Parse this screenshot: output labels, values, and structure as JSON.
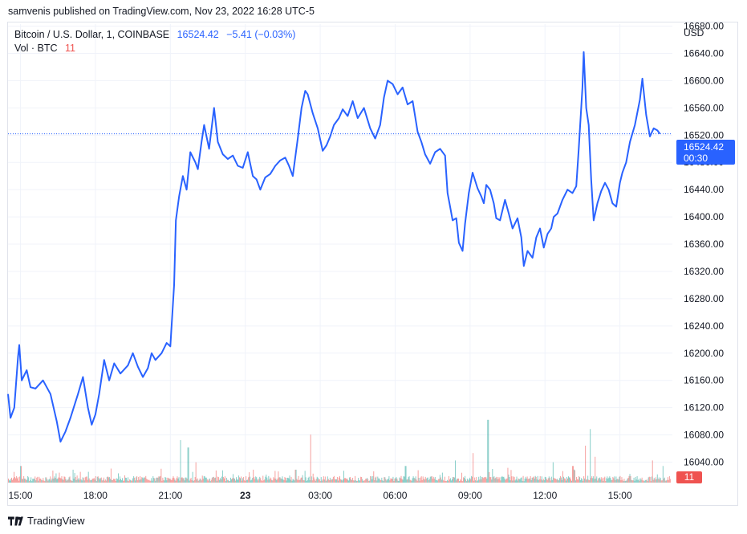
{
  "header": {
    "published": "samvenis published on TradingView.com, Nov 23, 2022 16:28 UTC-5"
  },
  "legend": {
    "symbol": "Bitcoin / U.S. Dollar, 1, COINBASE",
    "last": "16524.42",
    "change": "−5.41 (−0.03%)",
    "volume_label": "Vol · BTC",
    "volume_value": "11"
  },
  "price_axis": {
    "currency": "USD"
  },
  "last_price_tag": {
    "price": "16524.42",
    "countdown": "00:30"
  },
  "volume_tag": {
    "value": "11"
  },
  "footer": {
    "brand": "TradingView"
  },
  "colors": {
    "line": "#2962ff",
    "vol_up": "#26a69a",
    "vol_down": "#ef5350",
    "grid": "#f0f3fa"
  },
  "chart_data": {
    "type": "line",
    "title": "Bitcoin / U.S. Dollar, 1, COINBASE",
    "xlabel": "",
    "ylabel": "USD",
    "ylim": [
      16010,
      16683
    ],
    "grid": true,
    "y_ticks": [
      16040,
      16080,
      16120,
      16160,
      16200,
      16240,
      16280,
      16320,
      16360,
      16400,
      16440,
      16480,
      16520,
      16560,
      16600,
      16640,
      16680
    ],
    "x_tick_labels": [
      {
        "label": "15:00",
        "t": 0.5
      },
      {
        "label": "18:00",
        "t": 3.5
      },
      {
        "label": "21:00",
        "t": 6.5
      },
      {
        "label": "23",
        "t": 9.5
      },
      {
        "label": "03:00",
        "t": 12.5
      },
      {
        "label": "06:00",
        "t": 15.5
      },
      {
        "label": "09:00",
        "t": 18.5
      },
      {
        "label": "12:00",
        "t": 21.5
      },
      {
        "label": "15:00",
        "t": 24.5
      }
    ],
    "x_range_hours": [
      0,
      26.6
    ],
    "series": [
      {
        "values": [
          [
            0.0,
            16140
          ],
          [
            0.1,
            16105
          ],
          [
            0.25,
            16120
          ],
          [
            0.4,
            16195
          ],
          [
            0.45,
            16212
          ],
          [
            0.55,
            16160
          ],
          [
            0.75,
            16175
          ],
          [
            0.9,
            16150
          ],
          [
            1.1,
            16148
          ],
          [
            1.4,
            16160
          ],
          [
            1.7,
            16140
          ],
          [
            1.95,
            16100
          ],
          [
            2.1,
            16070
          ],
          [
            2.3,
            16085
          ],
          [
            2.5,
            16105
          ],
          [
            2.8,
            16140
          ],
          [
            3.0,
            16165
          ],
          [
            3.2,
            16120
          ],
          [
            3.35,
            16095
          ],
          [
            3.5,
            16110
          ],
          [
            3.65,
            16140
          ],
          [
            3.85,
            16190
          ],
          [
            4.05,
            16160
          ],
          [
            4.25,
            16185
          ],
          [
            4.5,
            16170
          ],
          [
            4.8,
            16182
          ],
          [
            5.0,
            16200
          ],
          [
            5.2,
            16180
          ],
          [
            5.4,
            16165
          ],
          [
            5.6,
            16178
          ],
          [
            5.75,
            16200
          ],
          [
            5.9,
            16190
          ],
          [
            6.15,
            16200
          ],
          [
            6.35,
            16215
          ],
          [
            6.5,
            16210
          ],
          [
            6.65,
            16300
          ],
          [
            6.72,
            16395
          ],
          [
            6.85,
            16430
          ],
          [
            7.0,
            16460
          ],
          [
            7.15,
            16440
          ],
          [
            7.3,
            16495
          ],
          [
            7.5,
            16480
          ],
          [
            7.6,
            16470
          ],
          [
            7.75,
            16510
          ],
          [
            7.85,
            16535
          ],
          [
            8.05,
            16500
          ],
          [
            8.25,
            16560
          ],
          [
            8.4,
            16510
          ],
          [
            8.6,
            16492
          ],
          [
            8.8,
            16485
          ],
          [
            9.0,
            16490
          ],
          [
            9.2,
            16475
          ],
          [
            9.4,
            16472
          ],
          [
            9.6,
            16495
          ],
          [
            9.8,
            16460
          ],
          [
            9.95,
            16455
          ],
          [
            10.1,
            16440
          ],
          [
            10.3,
            16458
          ],
          [
            10.5,
            16463
          ],
          [
            10.7,
            16475
          ],
          [
            10.9,
            16483
          ],
          [
            11.1,
            16487
          ],
          [
            11.25,
            16475
          ],
          [
            11.4,
            16460
          ],
          [
            11.6,
            16515
          ],
          [
            11.75,
            16560
          ],
          [
            11.9,
            16585
          ],
          [
            12.0,
            16580
          ],
          [
            12.2,
            16552
          ],
          [
            12.4,
            16530
          ],
          [
            12.6,
            16497
          ],
          [
            12.75,
            16505
          ],
          [
            12.9,
            16518
          ],
          [
            13.05,
            16535
          ],
          [
            13.25,
            16545
          ],
          [
            13.4,
            16558
          ],
          [
            13.6,
            16548
          ],
          [
            13.8,
            16570
          ],
          [
            14.0,
            16545
          ],
          [
            14.25,
            16560
          ],
          [
            14.5,
            16530
          ],
          [
            14.7,
            16515
          ],
          [
            14.9,
            16535
          ],
          [
            15.05,
            16575
          ],
          [
            15.2,
            16600
          ],
          [
            15.4,
            16595
          ],
          [
            15.6,
            16580
          ],
          [
            15.8,
            16590
          ],
          [
            16.0,
            16565
          ],
          [
            16.2,
            16570
          ],
          [
            16.4,
            16525
          ],
          [
            16.55,
            16510
          ],
          [
            16.7,
            16492
          ],
          [
            16.9,
            16478
          ],
          [
            17.1,
            16495
          ],
          [
            17.3,
            16500
          ],
          [
            17.5,
            16490
          ],
          [
            17.6,
            16435
          ],
          [
            17.7,
            16415
          ],
          [
            17.8,
            16395
          ],
          [
            17.95,
            16398
          ],
          [
            18.05,
            16362
          ],
          [
            18.2,
            16350
          ],
          [
            18.3,
            16390
          ],
          [
            18.45,
            16435
          ],
          [
            18.6,
            16465
          ],
          [
            18.8,
            16442
          ],
          [
            18.95,
            16430
          ],
          [
            19.05,
            16420
          ],
          [
            19.15,
            16447
          ],
          [
            19.3,
            16440
          ],
          [
            19.45,
            16420
          ],
          [
            19.55,
            16398
          ],
          [
            19.7,
            16395
          ],
          [
            19.9,
            16425
          ],
          [
            20.05,
            16405
          ],
          [
            20.2,
            16383
          ],
          [
            20.4,
            16398
          ],
          [
            20.55,
            16370
          ],
          [
            20.65,
            16328
          ],
          [
            20.8,
            16350
          ],
          [
            21.0,
            16340
          ],
          [
            21.15,
            16370
          ],
          [
            21.3,
            16383
          ],
          [
            21.45,
            16355
          ],
          [
            21.6,
            16375
          ],
          [
            21.75,
            16383
          ],
          [
            21.85,
            16400
          ],
          [
            22.0,
            16405
          ],
          [
            22.2,
            16425
          ],
          [
            22.4,
            16440
          ],
          [
            22.6,
            16435
          ],
          [
            22.75,
            16445
          ],
          [
            22.85,
            16500
          ],
          [
            23.0,
            16590
          ],
          [
            23.05,
            16642
          ],
          [
            23.15,
            16560
          ],
          [
            23.25,
            16535
          ],
          [
            23.35,
            16455
          ],
          [
            23.45,
            16395
          ],
          [
            23.6,
            16420
          ],
          [
            23.75,
            16438
          ],
          [
            23.9,
            16450
          ],
          [
            24.05,
            16440
          ],
          [
            24.2,
            16420
          ],
          [
            24.35,
            16415
          ],
          [
            24.5,
            16450
          ],
          [
            24.6,
            16465
          ],
          [
            24.75,
            16480
          ],
          [
            24.9,
            16510
          ],
          [
            25.1,
            16535
          ],
          [
            25.3,
            16572
          ],
          [
            25.4,
            16603
          ],
          [
            25.55,
            16550
          ],
          [
            25.7,
            16518
          ],
          [
            25.85,
            16530
          ],
          [
            26.0,
            16527
          ],
          [
            26.1,
            16522
          ]
        ]
      }
    ],
    "volume": {
      "spikes": [
        {
          "t": 0.5,
          "v": 45
        },
        {
          "t": 1.9,
          "v": 25
        },
        {
          "t": 2.6,
          "v": 35
        },
        {
          "t": 4.1,
          "v": 38
        },
        {
          "t": 6.9,
          "v": 115
        },
        {
          "t": 7.2,
          "v": 95
        },
        {
          "t": 7.5,
          "v": 55
        },
        {
          "t": 9.8,
          "v": 35
        },
        {
          "t": 11.5,
          "v": 35
        },
        {
          "t": 12.1,
          "v": 130
        },
        {
          "t": 15.9,
          "v": 45
        },
        {
          "t": 17.9,
          "v": 60
        },
        {
          "t": 18.6,
          "v": 80
        },
        {
          "t": 19.2,
          "v": 170
        },
        {
          "t": 20.0,
          "v": 40
        },
        {
          "t": 21.8,
          "v": 55
        },
        {
          "t": 22.6,
          "v": 45
        },
        {
          "t": 23.1,
          "v": 100
        },
        {
          "t": 23.3,
          "v": 145
        },
        {
          "t": 23.5,
          "v": 70
        },
        {
          "t": 25.8,
          "v": 60
        },
        {
          "t": 26.2,
          "v": 45
        }
      ],
      "last": 11
    }
  }
}
